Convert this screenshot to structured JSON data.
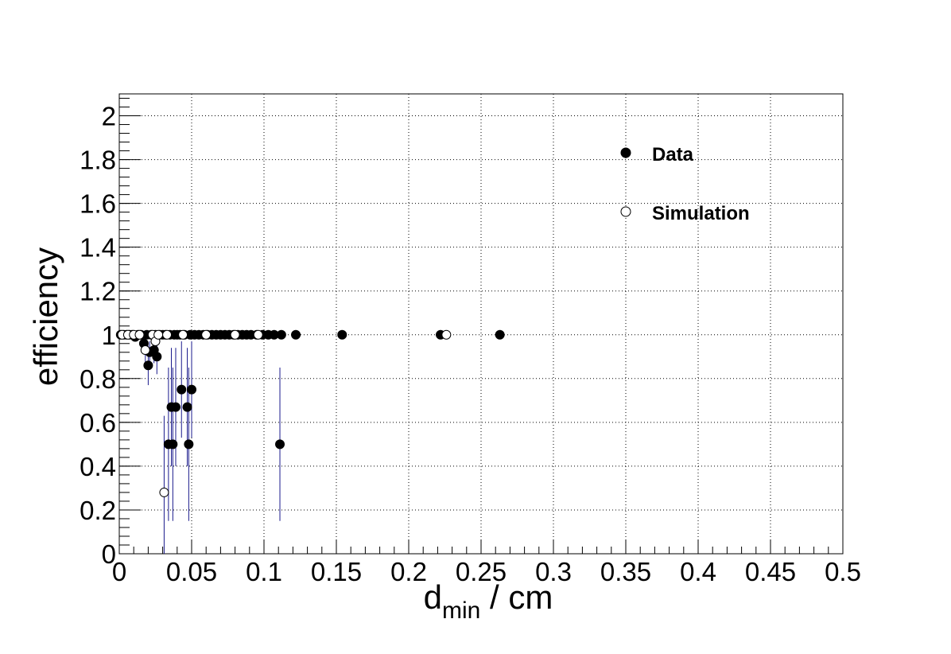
{
  "chart_data": {
    "type": "scatter",
    "title": "",
    "xlabel": "d",
    "xlabel_subscript": "min",
    "xlabel_suffix": " / cm",
    "ylabel": "efficiency",
    "xlim": [
      0,
      0.5
    ],
    "ylim": [
      0,
      2.1
    ],
    "grid": true,
    "legend_position": "top-right",
    "x_ticks": [
      "0",
      "0.05",
      "0.1",
      "0.15",
      "0.2",
      "0.25",
      "0.3",
      "0.35",
      "0.4",
      "0.45",
      "0.5"
    ],
    "y_ticks": [
      "0",
      "0.2",
      "0.4",
      "0.6",
      "0.8",
      "1",
      "1.2",
      "1.4",
      "1.6",
      "1.8",
      "2"
    ],
    "error_bar_color": "#1a1a8c",
    "series": [
      {
        "name": "Data",
        "marker": "filled-circle",
        "color": "#000000",
        "points": [
          {
            "x": 0.001,
            "y": 1.0,
            "err": 0.0
          },
          {
            "x": 0.003,
            "y": 1.0,
            "err": 0.0
          },
          {
            "x": 0.005,
            "y": 1.0,
            "err": 0.0
          },
          {
            "x": 0.007,
            "y": 1.0,
            "err": 0.0
          },
          {
            "x": 0.009,
            "y": 1.0,
            "err": 0.0
          },
          {
            "x": 0.011,
            "y": 0.99,
            "err": 0.01
          },
          {
            "x": 0.013,
            "y": 1.0,
            "err": 0.0
          },
          {
            "x": 0.015,
            "y": 1.0,
            "err": 0.0
          },
          {
            "x": 0.017,
            "y": 0.96,
            "err": 0.03
          },
          {
            "x": 0.019,
            "y": 1.0,
            "err": 0.0
          },
          {
            "x": 0.02,
            "y": 0.86,
            "err": 0.09
          },
          {
            "x": 0.021,
            "y": 0.92,
            "err": 0.05
          },
          {
            "x": 0.022,
            "y": 1.0,
            "err": 0.0
          },
          {
            "x": 0.024,
            "y": 0.93,
            "err": 0.06
          },
          {
            "x": 0.025,
            "y": 1.0,
            "err": 0.0
          },
          {
            "x": 0.026,
            "y": 0.9,
            "err": 0.08
          },
          {
            "x": 0.028,
            "y": 1.0,
            "err": 0.0
          },
          {
            "x": 0.03,
            "y": 1.0,
            "err": 0.0
          },
          {
            "x": 0.032,
            "y": 1.0,
            "err": 0.0
          },
          {
            "x": 0.034,
            "y": 0.5,
            "err": 0.35
          },
          {
            "x": 0.035,
            "y": 1.0,
            "err": 0.0
          },
          {
            "x": 0.036,
            "y": 0.67,
            "err": 0.27
          },
          {
            "x": 0.037,
            "y": 0.5,
            "err": 0.35
          },
          {
            "x": 0.038,
            "y": 1.0,
            "err": 0.0
          },
          {
            "x": 0.039,
            "y": 0.67,
            "err": 0.27
          },
          {
            "x": 0.04,
            "y": 1.0,
            "err": 0.0
          },
          {
            "x": 0.042,
            "y": 1.0,
            "err": 0.0
          },
          {
            "x": 0.043,
            "y": 0.75,
            "err": 0.22
          },
          {
            "x": 0.045,
            "y": 1.0,
            "err": 0.0
          },
          {
            "x": 0.047,
            "y": 0.67,
            "err": 0.27
          },
          {
            "x": 0.048,
            "y": 0.5,
            "err": 0.35
          },
          {
            "x": 0.049,
            "y": 1.0,
            "err": 0.0
          },
          {
            "x": 0.05,
            "y": 0.75,
            "err": 0.22
          },
          {
            "x": 0.052,
            "y": 1.0,
            "err": 0.0
          },
          {
            "x": 0.055,
            "y": 1.0,
            "err": 0.0
          },
          {
            "x": 0.058,
            "y": 1.0,
            "err": 0.0
          },
          {
            "x": 0.061,
            "y": 1.0,
            "err": 0.0
          },
          {
            "x": 0.064,
            "y": 1.0,
            "err": 0.0
          },
          {
            "x": 0.067,
            "y": 1.0,
            "err": 0.0
          },
          {
            "x": 0.07,
            "y": 1.0,
            "err": 0.0
          },
          {
            "x": 0.073,
            "y": 1.0,
            "err": 0.0
          },
          {
            "x": 0.076,
            "y": 1.0,
            "err": 0.0
          },
          {
            "x": 0.079,
            "y": 1.0,
            "err": 0.0
          },
          {
            "x": 0.082,
            "y": 1.0,
            "err": 0.0
          },
          {
            "x": 0.085,
            "y": 1.0,
            "err": 0.0
          },
          {
            "x": 0.088,
            "y": 1.0,
            "err": 0.0
          },
          {
            "x": 0.091,
            "y": 1.0,
            "err": 0.0
          },
          {
            "x": 0.095,
            "y": 1.0,
            "err": 0.0
          },
          {
            "x": 0.099,
            "y": 1.0,
            "err": 0.0
          },
          {
            "x": 0.103,
            "y": 1.0,
            "err": 0.0
          },
          {
            "x": 0.107,
            "y": 1.0,
            "err": 0.0
          },
          {
            "x": 0.112,
            "y": 1.0,
            "err": 0.0
          },
          {
            "x": 0.111,
            "y": 0.5,
            "err": 0.35
          },
          {
            "x": 0.122,
            "y": 1.0,
            "err": 0.0
          },
          {
            "x": 0.154,
            "y": 1.0,
            "err": 0.0
          },
          {
            "x": 0.222,
            "y": 1.0,
            "err": 0.0
          },
          {
            "x": 0.263,
            "y": 1.0,
            "err": 0.0
          }
        ]
      },
      {
        "name": "Simulation",
        "marker": "open-circle",
        "color": "#000000",
        "points": [
          {
            "x": 0.002,
            "y": 1.0,
            "err": 0.0
          },
          {
            "x": 0.006,
            "y": 1.0,
            "err": 0.0
          },
          {
            "x": 0.01,
            "y": 1.0,
            "err": 0.0
          },
          {
            "x": 0.014,
            "y": 1.0,
            "err": 0.0
          },
          {
            "x": 0.018,
            "y": 0.93,
            "err": 0.06
          },
          {
            "x": 0.023,
            "y": 1.0,
            "err": 0.0
          },
          {
            "x": 0.025,
            "y": 0.97,
            "err": 0.03
          },
          {
            "x": 0.027,
            "y": 1.0,
            "err": 0.0
          },
          {
            "x": 0.031,
            "y": 0.28,
            "err": 0.35
          },
          {
            "x": 0.033,
            "y": 1.0,
            "err": 0.0
          },
          {
            "x": 0.044,
            "y": 1.0,
            "err": 0.0
          },
          {
            "x": 0.06,
            "y": 1.0,
            "err": 0.0
          },
          {
            "x": 0.08,
            "y": 1.0,
            "err": 0.0
          },
          {
            "x": 0.096,
            "y": 1.0,
            "err": 0.0
          },
          {
            "x": 0.226,
            "y": 1.0,
            "err": 0.0
          }
        ]
      }
    ]
  }
}
